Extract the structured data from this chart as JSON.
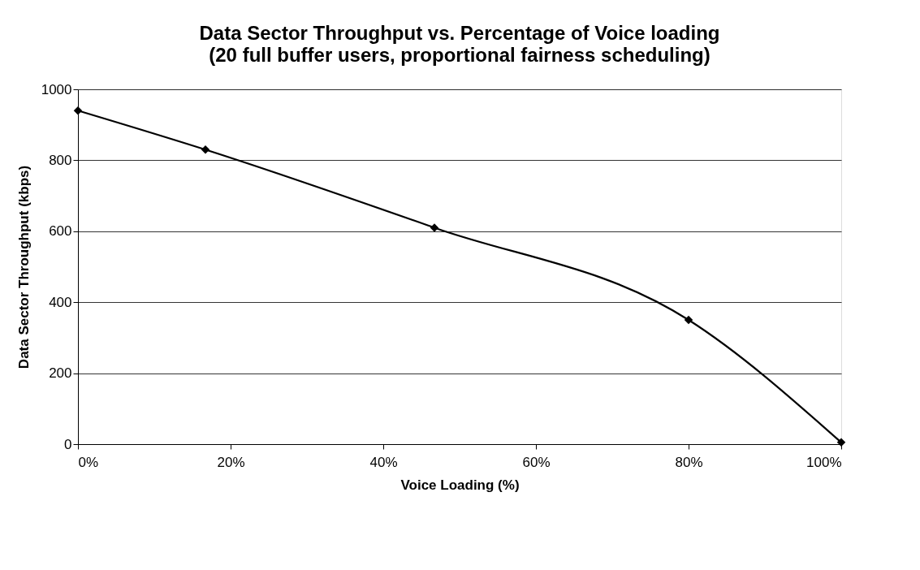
{
  "chart_data": {
    "type": "line",
    "title": "Data Sector Throughput vs. Percentage of Voice loading",
    "subtitle": "(20 full buffer users, proportional fairness scheduling)",
    "xlabel": "Voice Loading (%)",
    "ylabel": "Data Sector Throughput (kbps)",
    "x": [
      0,
      16.7,
      46.7,
      80,
      100
    ],
    "series": [
      {
        "color": "#000000",
        "values": [
          940,
          830,
          610,
          350,
          5
        ]
      }
    ],
    "xlim": [
      0,
      100
    ],
    "xticks": [
      {
        "value": 0,
        "label": "0%"
      },
      {
        "value": 20,
        "label": "20%"
      },
      {
        "value": 40,
        "label": "40%"
      },
      {
        "value": 60,
        "label": "60%"
      },
      {
        "value": 80,
        "label": "80%"
      },
      {
        "value": 100,
        "label": "100%"
      }
    ],
    "ylim": [
      0,
      1000
    ],
    "yticks": [
      0,
      200,
      400,
      600,
      800,
      1000
    ],
    "grid": "y",
    "marker": "diamond",
    "line_style": "solid"
  }
}
